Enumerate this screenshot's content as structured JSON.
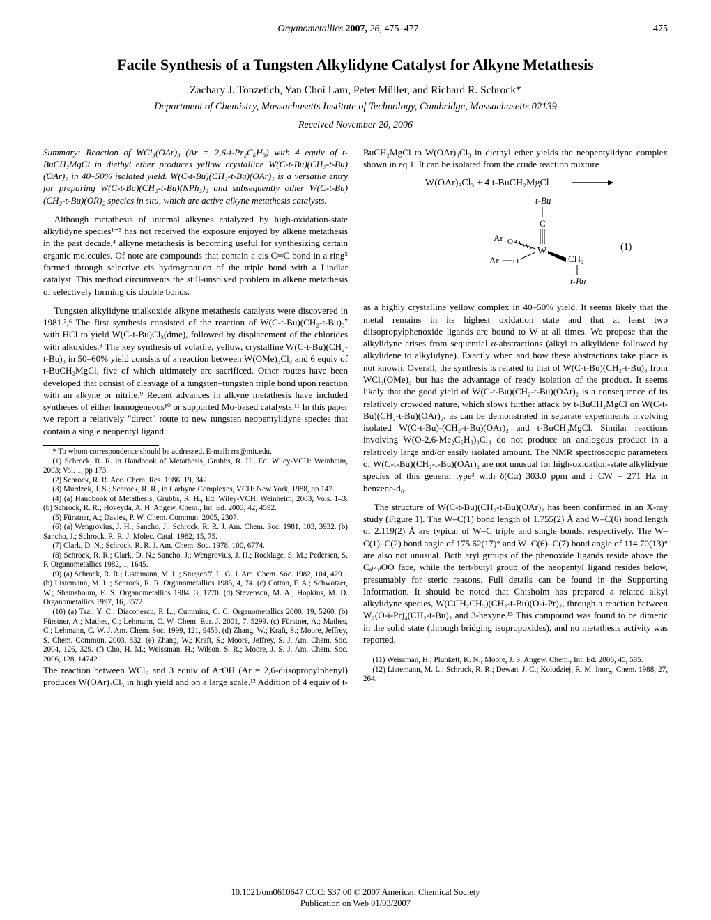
{
  "runningHead": {
    "journal": "Organometallics",
    "year": "2007,",
    "volume": "26,",
    "pages": "475–477",
    "pageNumber": "475"
  },
  "title": "Facile Synthesis of a Tungsten Alkylidyne Catalyst for Alkyne Metathesis",
  "authors": "Zachary J. Tonzetich, Yan Choi Lam, Peter Müller, and Richard R. Schrock*",
  "affiliation": "Department of Chemistry, Massachusetts Institute of Technology, Cambridge, Massachusetts 02139",
  "received": "Received November 20, 2006",
  "summary": "Summary: Reaction of WCl₃(OAr)₃ (Ar = 2,6-i-Pr₂C₆H₃) with 4 equiv of t-BuCH₂MgCl in diethyl ether produces yellow crystalline W(C-t-Bu)(CH₂-t-Bu)(OAr)₂ in 40–50% isolated yield. W(C-t-Bu)(CH₂-t-Bu)(OAr)₂ is a versatile entry for preparing W(C-t-Bu)(CH₂-t-Bu)(NPh₂)₂ and subsequently other W(C-t-Bu)(CH₂-t-Bu)(OR)₂ species in situ, which are active alkyne metathesis catalysts.",
  "body": {
    "p1": "Although metathesis of internal alkynes catalyzed by high-oxidation-state alkylidyne species¹⁻³ has not received the exposure enjoyed by alkene metathesis in the past decade,⁴ alkyne metathesis is becoming useful for synthesizing certain organic molecules. Of note are compounds that contain a cis C═C bond in a ring⁵ formed through selective cis hydrogenation of the triple bond with a Lindlar catalyst. This method circumvents the still-unsolved problem in alkene metathesis of selectively forming cis double bonds.",
    "p2": "Tungsten alkylidyne trialkoxide alkyne metathesis catalysts were discovered in 1981.²,⁶ The first synthesis consisted of the reaction of W(C-t-Bu)(CH₂-t-Bu)₃⁷ with HCl to yield W(C-t-Bu)Cl₃(dme), followed by displacement of the chlorides with alkoxides.⁸ The key synthesis of volatile, yellow, crystalline W(C-t-Bu)(CH₂-t-Bu)₃ in 50–60% yield consists of a reaction between W(OMe)₃Cl₃ and 6 equiv of t-BuCH₂MgCl, five of which ultimately are sacrificed. Other routes have been developed that consist of cleavage of a tungsten–tungsten triple bond upon reaction with an alkyne or nitrile.⁹ Recent advances in alkyne metathesis have included syntheses of either homogeneous¹⁰ or supported Mo-based catalysts.¹¹ In this paper we report a relatively \"direct\" route to new tungsten neopentylidyne species that contain a single neopentyl ligand.",
    "p3": "The reaction between WCl₆ and 3 equiv of ArOH (Ar = 2,6-diisopropylphenyl) produces W(OAr)₃Cl₃ in high yield and on a large scale.¹² Addition of 4 equiv of t-BuCH₂MgCl to W(OAr)₃Cl₃ in diethyl ether yields the neopentylidyne complex shown in eq 1. It can be isolated from the crude reaction mixture",
    "p4": "as a highly crystalline yellow complex in 40–50% yield. It seems likely that the metal remains in its highest oxidation state and that at least two diisopropylphenoxide ligands are bound to W at all times. We propose that the alkylidyne arises from sequential α-abstractions (alkyl to alkylidene followed by alkylidene to alkylidyne). Exactly when and how these abstractions take place is not known. Overall, the synthesis is related to that of W(C-t-Bu)(CH₂-t-Bu)₃ from WCl₃(OMe)₃ but has the advantage of ready isolation of the product. It seems likely that the good yield of W(C-t-Bu)(CH₂-t-Bu)(OAr)₂ is a consequence of its relatively crowded nature, which slows further attack by t-BuCH₂MgCl on W(C-t-Bu)(CH₂-t-Bu)(OAr)₂, as can be demonstrated in separate experiments involving isolated W(C-t-Bu)-(CH₂-t-Bu)(OAr)₂ and t-BuCH₂MgCl. Similar reactions involving W(O-2,6-Me₂C₆H₃)₃Cl₃ do not produce an analogous product in a relatively large and/or easily isolated amount. The NMR spectroscopic parameters of W(C-t-Bu)(CH₂-t-Bu)(OAr)₂ are not unusual for high-oxidation-state alkylidyne species of this general type³ with δ(Cα) 303.0 ppm and J_CW = 271 Hz in benzene-d₆.",
    "p5": "The structure of W(C-t-Bu)(CH₂-t-Bu)(OAr)₂ has been confirmed in an X-ray study (Figure 1). The W–C(1) bond length of 1.755(2) Å and W–C(6) bond length of 2.119(2) Å are typical of W–C triple and single bonds, respectively. The W–C(1)–C(2) bond angle of 175.62(17)° and W–C(6)–C(7) bond angle of 114.70(13)° are also not unusual. Both aryl groups of the phenoxide ligands reside above the CₐₗₖᵧₗOO face, while the tert-butyl group of the neopentyl ligand resides below, presumably for steric reasons. Full details can be found in the Supporting Information. It should be noted that Chisholm has prepared a related alkyl alkylidyne species, W(CCH₂CH₃)(CH₂-t-Bu)(O-i-Pr)₂, through a reaction between W₂(O-i-Pr)₄(CH₂-t-Bu)₂ and 3-hexyne.¹³ This compound was found to be dimeric in the solid state (through bridging isopropoxides), and no metathesis activity was reported."
  },
  "scheme": {
    "reagents": "W(OAr)₃Cl₃ + 4  t-BuCH₂MgCl",
    "labels": {
      "tBu_top": "t-Bu",
      "C": "C",
      "Ar1": "Ar",
      "Ar2": "Ar",
      "O1": "O",
      "O2": "O",
      "W": "W",
      "CH2": "CH₂",
      "tBu_bot": "t-Bu",
      "eqnum": "(1)"
    }
  },
  "footnotesLeft": [
    "* To whom correspondence should be addressed. E-mail: rrs@mit.edu.",
    "(1) Schrock, R. R. in Handbook of Metathesis, Grubbs, R. H., Ed. Wiley-VCH: Weinheim, 2003; Vol. 1, pp 173.",
    "(2) Schrock, R. R. Acc. Chem. Res. 1986, 19, 342.",
    "(3) Murdzek, J. S.; Schrock, R. R., in Carbyne Complexes, VCH: New York, 1988, pp 147.",
    "(4) (a) Handbook of Metathesis, Grubbs, R. H., Ed. Wiley-VCH: Weinheim, 2003; Vols. 1–3. (b) Schrock, R. R.; Hoveyda, A. H. Angew. Chem., Int. Ed. 2003, 42, 4592.",
    "(5) Fürstner, A.; Davies, P. W. Chem. Commun. 2005, 2307.",
    "(6) (a) Wengrovius, J. H.; Sancho, J.; Schrock, R. R. J. Am. Chem. Soc. 1981, 103, 3932. (b) Sancho, J.; Schrock, R. R. J. Molec. Catal. 1982, 15, 75.",
    "(7) Clark, D. N.; Schrock, R. R. J. Am. Chem. Soc. 1978, 100, 6774.",
    "(8) Schrock, R. R.; Clark, D. N.; Sancho, J.; Wengrovius, J. H.; Rocklage, S. M.; Pedersen, S. F. Organometallics 1982, 1, 1645.",
    "(9) (a) Schrock, R. R.; Listemann, M. L.; Sturgeoff, L. G. J. Am. Chem. Soc. 1982, 104, 4291. (b) Listemann, M. L.; Schrock, R. R. Organometallics 1985, 4, 74. (c) Cotton, F. A.; Schwotzer, W.; Shamshoum, E. S. Organometallics 1984, 3, 1770. (d) Stevenson, M. A.; Hopkins, M. D. Organometallics 1997, 16, 3572.",
    "(10) (a) Tsai, Y. C.; Diaconescu, P. L.; Cummins, C. C. Organometallics 2000, 19, 5260. (b) Fürstner, A.; Mathes, C.; Lehmann, C. W. Chem. Eur. J. 2001, 7, 5299. (c) Fürstner, A.; Mathes, C.; Lehmann, C. W. J. Am. Chem. Soc. 1999, 121, 9453. (d) Zhang, W.; Kraft, S.; Moore, Jeffrey, S. Chem. Commun. 2003, 832. (e) Zhang, W.; Kraft, S.; Moore, Jeffrey, S. J. Am. Chem. Soc. 2004, 126, 329. (f) Cho, H. M.; Weissman, H.; Wilson, S. R.; Moore, J. S. J. Am. Chem. Soc. 2006, 128, 14742."
  ],
  "footnotesRight": [
    "(11) Weissman, H.; Plunkett, K. N.; Moore, J. S. Angew. Chem., Int. Ed. 2006, 45, 585.",
    "(12) Listemann, M. L.; Schrock, R. R.; Dewan, J. C.; Kolodziej, R. M. Inorg. Chem. 1988, 27, 264."
  ],
  "footer": {
    "line1": "10.1021/om0610647 CCC: $37.00     © 2007 American Chemical Society",
    "line2": "Publication on Web 01/03/2007"
  },
  "colors": {
    "text": "#000000",
    "background": "#ffffff",
    "rule": "#000000"
  },
  "typography": {
    "bodyFontSizePx": 13.1,
    "footnoteFontSizePx": 11.1,
    "titleFontSizePx": 22
  }
}
